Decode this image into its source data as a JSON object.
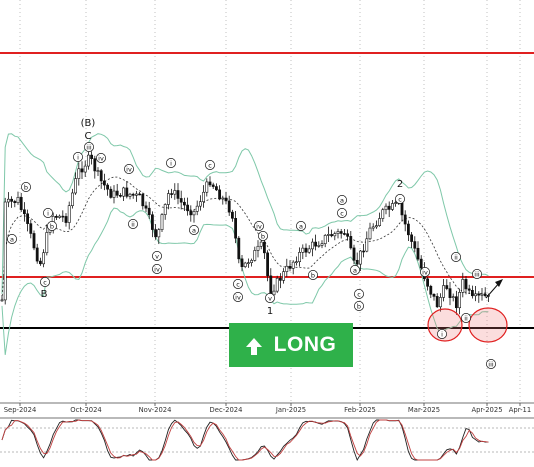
{
  "chart_data": [
    {
      "type": "candlestick",
      "x_axis_labels": [
        "Sep-2024",
        "Oct-2024",
        "Nov-2024",
        "Dec-2024",
        "Jan-2025",
        "Feb-2025",
        "Mar-2025",
        "Apr-2025",
        "Apr-11"
      ],
      "horizontal_levels": [
        {
          "role": "upper-resistance",
          "color": "#e02020"
        },
        {
          "role": "resistance",
          "color": "#e02020"
        },
        {
          "role": "support",
          "color": "#000000"
        }
      ],
      "indicators": [
        "bollinger-bands",
        "moving-average"
      ],
      "wave_labels": [
        "(B)",
        "C",
        "B",
        "1",
        "2",
        "(i)",
        "(ii)",
        "(iii)",
        "(iv)",
        "(v)",
        "(a)",
        "(b)",
        "(c)",
        "(i)",
        "(ii)",
        "(iii)"
      ],
      "annotations": {
        "signal": "LONG",
        "forecast_arrow": "up-right",
        "highlight_circles": 2
      }
    },
    {
      "type": "line",
      "series_count": 2,
      "overbought_level": 80,
      "oversold_level": 20
    }
  ],
  "banner": {
    "label": "LONG",
    "icon": "arrow-up-icon",
    "color": "#2fb14a"
  },
  "colors": {
    "resistance": "#e02020",
    "support": "#000000",
    "bollinger": "#7fc8a9",
    "ma": "#333333",
    "bull": "#ffffff",
    "bear": "#111111"
  }
}
